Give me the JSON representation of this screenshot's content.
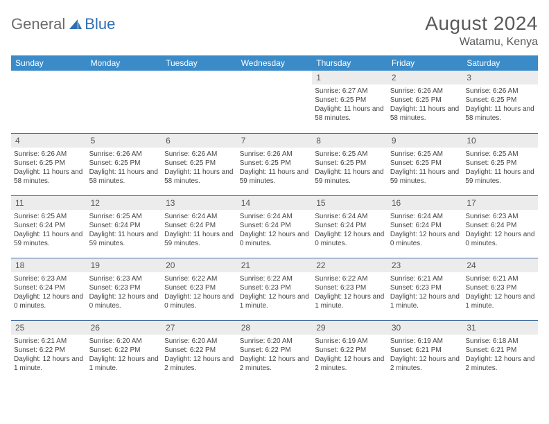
{
  "logo": {
    "main": "General",
    "accent": "Blue"
  },
  "title": "August 2024",
  "location": "Watamu, Kenya",
  "colors": {
    "header_bg": "#3b8bc9",
    "header_text": "#ffffff",
    "daynum_bg": "#ececec",
    "body_text": "#444444",
    "row_border": "#3b6a9c",
    "logo_gray": "#6b6b6b",
    "logo_blue": "#2d6fb5"
  },
  "day_headers": [
    "Sunday",
    "Monday",
    "Tuesday",
    "Wednesday",
    "Thursday",
    "Friday",
    "Saturday"
  ],
  "weeks": [
    [
      {
        "empty": true
      },
      {
        "empty": true
      },
      {
        "empty": true
      },
      {
        "empty": true
      },
      {
        "day": "1",
        "sunrise": "Sunrise: 6:27 AM",
        "sunset": "Sunset: 6:25 PM",
        "daylight": "Daylight: 11 hours and 58 minutes."
      },
      {
        "day": "2",
        "sunrise": "Sunrise: 6:26 AM",
        "sunset": "Sunset: 6:25 PM",
        "daylight": "Daylight: 11 hours and 58 minutes."
      },
      {
        "day": "3",
        "sunrise": "Sunrise: 6:26 AM",
        "sunset": "Sunset: 6:25 PM",
        "daylight": "Daylight: 11 hours and 58 minutes."
      }
    ],
    [
      {
        "day": "4",
        "sunrise": "Sunrise: 6:26 AM",
        "sunset": "Sunset: 6:25 PM",
        "daylight": "Daylight: 11 hours and 58 minutes."
      },
      {
        "day": "5",
        "sunrise": "Sunrise: 6:26 AM",
        "sunset": "Sunset: 6:25 PM",
        "daylight": "Daylight: 11 hours and 58 minutes."
      },
      {
        "day": "6",
        "sunrise": "Sunrise: 6:26 AM",
        "sunset": "Sunset: 6:25 PM",
        "daylight": "Daylight: 11 hours and 58 minutes."
      },
      {
        "day": "7",
        "sunrise": "Sunrise: 6:26 AM",
        "sunset": "Sunset: 6:25 PM",
        "daylight": "Daylight: 11 hours and 59 minutes."
      },
      {
        "day": "8",
        "sunrise": "Sunrise: 6:25 AM",
        "sunset": "Sunset: 6:25 PM",
        "daylight": "Daylight: 11 hours and 59 minutes."
      },
      {
        "day": "9",
        "sunrise": "Sunrise: 6:25 AM",
        "sunset": "Sunset: 6:25 PM",
        "daylight": "Daylight: 11 hours and 59 minutes."
      },
      {
        "day": "10",
        "sunrise": "Sunrise: 6:25 AM",
        "sunset": "Sunset: 6:25 PM",
        "daylight": "Daylight: 11 hours and 59 minutes."
      }
    ],
    [
      {
        "day": "11",
        "sunrise": "Sunrise: 6:25 AM",
        "sunset": "Sunset: 6:24 PM",
        "daylight": "Daylight: 11 hours and 59 minutes."
      },
      {
        "day": "12",
        "sunrise": "Sunrise: 6:25 AM",
        "sunset": "Sunset: 6:24 PM",
        "daylight": "Daylight: 11 hours and 59 minutes."
      },
      {
        "day": "13",
        "sunrise": "Sunrise: 6:24 AM",
        "sunset": "Sunset: 6:24 PM",
        "daylight": "Daylight: 11 hours and 59 minutes."
      },
      {
        "day": "14",
        "sunrise": "Sunrise: 6:24 AM",
        "sunset": "Sunset: 6:24 PM",
        "daylight": "Daylight: 12 hours and 0 minutes."
      },
      {
        "day": "15",
        "sunrise": "Sunrise: 6:24 AM",
        "sunset": "Sunset: 6:24 PM",
        "daylight": "Daylight: 12 hours and 0 minutes."
      },
      {
        "day": "16",
        "sunrise": "Sunrise: 6:24 AM",
        "sunset": "Sunset: 6:24 PM",
        "daylight": "Daylight: 12 hours and 0 minutes."
      },
      {
        "day": "17",
        "sunrise": "Sunrise: 6:23 AM",
        "sunset": "Sunset: 6:24 PM",
        "daylight": "Daylight: 12 hours and 0 minutes."
      }
    ],
    [
      {
        "day": "18",
        "sunrise": "Sunrise: 6:23 AM",
        "sunset": "Sunset: 6:24 PM",
        "daylight": "Daylight: 12 hours and 0 minutes."
      },
      {
        "day": "19",
        "sunrise": "Sunrise: 6:23 AM",
        "sunset": "Sunset: 6:23 PM",
        "daylight": "Daylight: 12 hours and 0 minutes."
      },
      {
        "day": "20",
        "sunrise": "Sunrise: 6:22 AM",
        "sunset": "Sunset: 6:23 PM",
        "daylight": "Daylight: 12 hours and 0 minutes."
      },
      {
        "day": "21",
        "sunrise": "Sunrise: 6:22 AM",
        "sunset": "Sunset: 6:23 PM",
        "daylight": "Daylight: 12 hours and 1 minute."
      },
      {
        "day": "22",
        "sunrise": "Sunrise: 6:22 AM",
        "sunset": "Sunset: 6:23 PM",
        "daylight": "Daylight: 12 hours and 1 minute."
      },
      {
        "day": "23",
        "sunrise": "Sunrise: 6:21 AM",
        "sunset": "Sunset: 6:23 PM",
        "daylight": "Daylight: 12 hours and 1 minute."
      },
      {
        "day": "24",
        "sunrise": "Sunrise: 6:21 AM",
        "sunset": "Sunset: 6:23 PM",
        "daylight": "Daylight: 12 hours and 1 minute."
      }
    ],
    [
      {
        "day": "25",
        "sunrise": "Sunrise: 6:21 AM",
        "sunset": "Sunset: 6:22 PM",
        "daylight": "Daylight: 12 hours and 1 minute."
      },
      {
        "day": "26",
        "sunrise": "Sunrise: 6:20 AM",
        "sunset": "Sunset: 6:22 PM",
        "daylight": "Daylight: 12 hours and 1 minute."
      },
      {
        "day": "27",
        "sunrise": "Sunrise: 6:20 AM",
        "sunset": "Sunset: 6:22 PM",
        "daylight": "Daylight: 12 hours and 2 minutes."
      },
      {
        "day": "28",
        "sunrise": "Sunrise: 6:20 AM",
        "sunset": "Sunset: 6:22 PM",
        "daylight": "Daylight: 12 hours and 2 minutes."
      },
      {
        "day": "29",
        "sunrise": "Sunrise: 6:19 AM",
        "sunset": "Sunset: 6:22 PM",
        "daylight": "Daylight: 12 hours and 2 minutes."
      },
      {
        "day": "30",
        "sunrise": "Sunrise: 6:19 AM",
        "sunset": "Sunset: 6:21 PM",
        "daylight": "Daylight: 12 hours and 2 minutes."
      },
      {
        "day": "31",
        "sunrise": "Sunrise: 6:18 AM",
        "sunset": "Sunset: 6:21 PM",
        "daylight": "Daylight: 12 hours and 2 minutes."
      }
    ]
  ]
}
